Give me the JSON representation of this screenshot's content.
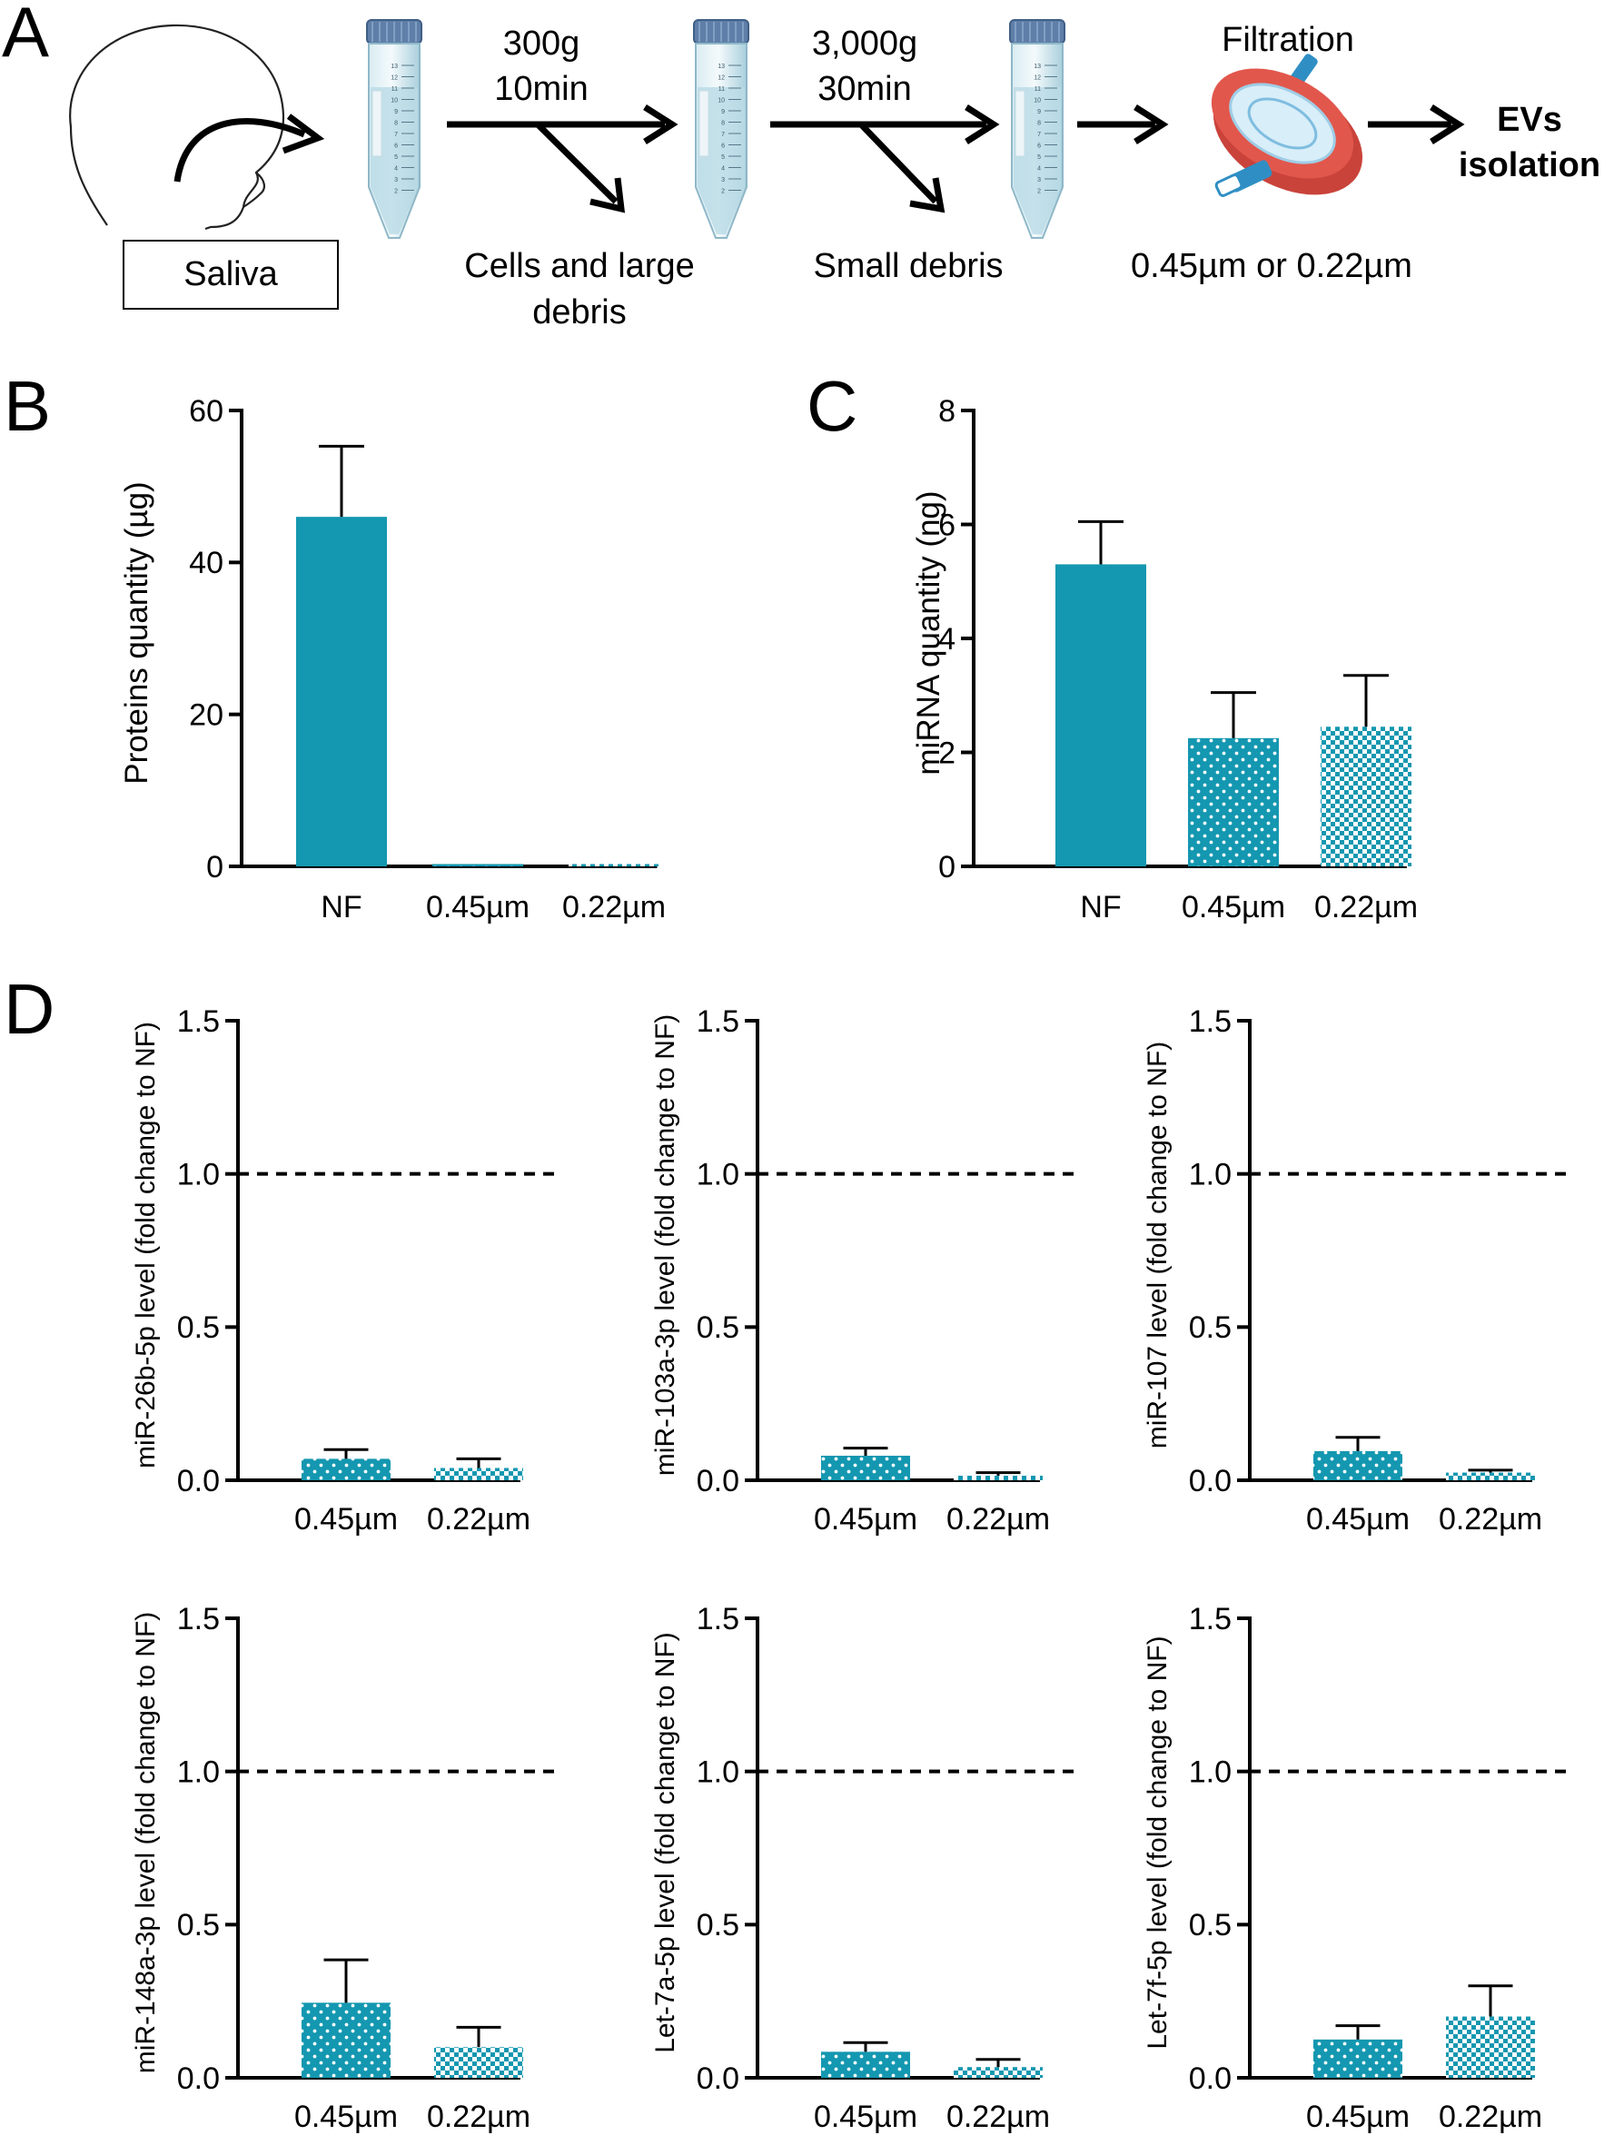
{
  "colors": {
    "bar": "#1497b0",
    "axis": "#000000",
    "tube_liquid": "#b9dbe6",
    "tube_cap": "#5f7fa8",
    "filter_red": "#e2574c",
    "filter_blue": "#2f8fc4"
  },
  "panel_a": {
    "letter": "A",
    "saliva_label": "Saliva",
    "step1_line1": "300g",
    "step1_line2": "10min",
    "step1_waste_line1": "Cells and large",
    "step1_waste_line2": "debris",
    "step2_line1": "3,000g",
    "step2_line2": "30min",
    "step2_waste": "Small debris",
    "filtration_label": "Filtration",
    "filter_sizes": "0.45µm or 0.22µm",
    "result_line1": "EVs",
    "result_line2": "isolation",
    "tube_scale": [
      "13",
      "12",
      "11",
      "10",
      "9",
      "8",
      "7",
      "6",
      "5",
      "4",
      "3",
      "2"
    ]
  },
  "chart_data": [
    {
      "panel": "B",
      "type": "bar",
      "categories": [
        "NF",
        "0.45µm",
        "0.22µm"
      ],
      "values": [
        46,
        0.3,
        0.3
      ],
      "errors": [
        9.3,
        0,
        0
      ],
      "patterns": [
        "solid",
        "dots",
        "checker"
      ],
      "ylabel": "Proteins quantity (µg)",
      "ylim": [
        0,
        60
      ],
      "yticks": [
        0,
        20,
        40,
        60
      ]
    },
    {
      "panel": "C",
      "type": "bar",
      "categories": [
        "NF",
        "0.45µm",
        "0.22µm"
      ],
      "values": [
        5.3,
        2.25,
        2.45
      ],
      "errors": [
        0.75,
        0.8,
        0.9
      ],
      "patterns": [
        "solid",
        "dots",
        "checker"
      ],
      "ylabel": "miRNA quantity (ng)",
      "ylim": [
        0,
        8
      ],
      "yticks": [
        0,
        2,
        4,
        6,
        8
      ]
    },
    {
      "panel": "D",
      "type": "bar",
      "categories": [
        "0.45µm",
        "0.22µm"
      ],
      "values": [
        0.07,
        0.04
      ],
      "errors": [
        0.03,
        0.03
      ],
      "patterns": [
        "dots",
        "checker"
      ],
      "ylabel": "miR-26b-5p level (fold change to NF)",
      "ylim": [
        0,
        1.5
      ],
      "yticks": [
        "0.0",
        "0.5",
        "1.0",
        "1.5"
      ],
      "reference_line": 1.0
    },
    {
      "panel": "D",
      "type": "bar",
      "categories": [
        "0.45µm",
        "0.22µm"
      ],
      "values": [
        0.08,
        0.015
      ],
      "errors": [
        0.025,
        0.01
      ],
      "patterns": [
        "dots",
        "checker"
      ],
      "ylabel": "miR-103a-3p level (fold change to NF)",
      "ylim": [
        0,
        1.5
      ],
      "yticks": [
        "0.0",
        "0.5",
        "1.0",
        "1.5"
      ],
      "reference_line": 1.0
    },
    {
      "panel": "D",
      "type": "bar",
      "categories": [
        "0.45µm",
        "0.22µm"
      ],
      "values": [
        0.095,
        0.025
      ],
      "errors": [
        0.045,
        0.008
      ],
      "patterns": [
        "dots",
        "checker"
      ],
      "ylabel": "miR-107 level (fold change to NF)",
      "ylim": [
        0,
        1.5
      ],
      "yticks": [
        "0.0",
        "0.5",
        "1.0",
        "1.5"
      ],
      "reference_line": 1.0
    },
    {
      "panel": "D",
      "type": "bar",
      "categories": [
        "0.45µm",
        "0.22µm"
      ],
      "values": [
        0.245,
        0.1
      ],
      "errors": [
        0.14,
        0.065
      ],
      "patterns": [
        "dots",
        "checker"
      ],
      "ylabel": "miR-148a-3p level (fold change to NF)",
      "ylim": [
        0,
        1.5
      ],
      "yticks": [
        "0.0",
        "0.5",
        "1.0",
        "1.5"
      ],
      "reference_line": 1.0
    },
    {
      "panel": "D",
      "type": "bar",
      "categories": [
        "0.45µm",
        "0.22µm"
      ],
      "values": [
        0.085,
        0.035
      ],
      "errors": [
        0.03,
        0.025
      ],
      "patterns": [
        "dots",
        "checker"
      ],
      "ylabel": "Let-7a-5p level (fold change to NF)",
      "ylim": [
        0,
        1.5
      ],
      "yticks": [
        "0.0",
        "0.5",
        "1.0",
        "1.5"
      ],
      "reference_line": 1.0
    },
    {
      "panel": "D",
      "type": "bar",
      "categories": [
        "0.45µm",
        "0.22µm"
      ],
      "values": [
        0.125,
        0.2
      ],
      "errors": [
        0.045,
        0.1
      ],
      "patterns": [
        "dots",
        "checker"
      ],
      "ylabel": "Let-7f-5p level (fold change to NF)",
      "ylim": [
        0,
        1.5
      ],
      "yticks": [
        "0.0",
        "0.5",
        "1.0",
        "1.5"
      ],
      "reference_line": 1.0
    }
  ],
  "panel_letters": {
    "b": "B",
    "c": "C",
    "d": "D"
  }
}
